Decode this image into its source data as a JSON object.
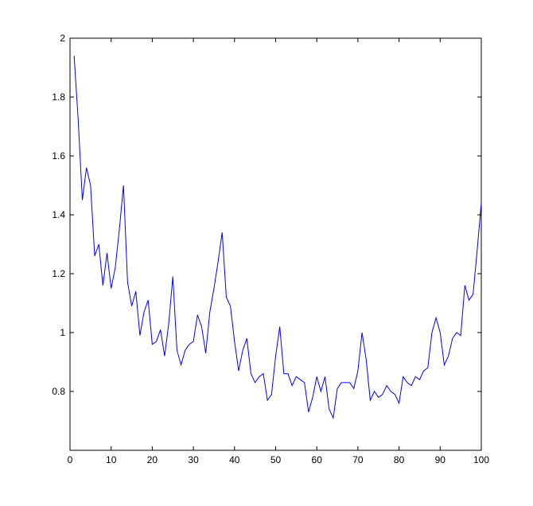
{
  "chart_data": {
    "type": "line",
    "x": [
      1,
      2,
      3,
      4,
      5,
      6,
      7,
      8,
      9,
      10,
      11,
      12,
      13,
      14,
      15,
      16,
      17,
      18,
      19,
      20,
      21,
      22,
      23,
      24,
      25,
      26,
      27,
      28,
      29,
      30,
      31,
      32,
      33,
      34,
      35,
      36,
      37,
      38,
      39,
      40,
      41,
      42,
      43,
      44,
      45,
      46,
      47,
      48,
      49,
      50,
      51,
      52,
      53,
      54,
      55,
      56,
      57,
      58,
      59,
      60,
      61,
      62,
      63,
      64,
      65,
      66,
      67,
      68,
      69,
      70,
      71,
      72,
      73,
      74,
      75,
      76,
      77,
      78,
      79,
      80,
      81,
      82,
      83,
      84,
      85,
      86,
      87,
      88,
      89,
      90,
      91,
      92,
      93,
      94,
      95,
      96,
      97,
      98,
      99,
      100
    ],
    "series": [
      {
        "color": "#0000ff",
        "values": [
          1.94,
          1.72,
          1.45,
          1.56,
          1.5,
          1.26,
          1.3,
          1.16,
          1.27,
          1.15,
          1.22,
          1.35,
          1.5,
          1.17,
          1.09,
          1.14,
          0.99,
          1.07,
          1.11,
          0.96,
          0.97,
          1.01,
          0.92,
          1.03,
          1.19,
          0.94,
          0.89,
          0.94,
          0.96,
          0.97,
          1.06,
          1.02,
          0.93,
          1.07,
          1.15,
          1.24,
          1.34,
          1.12,
          1.09,
          0.97,
          0.87,
          0.94,
          0.98,
          0.86,
          0.83,
          0.85,
          0.86,
          0.77,
          0.79,
          0.92,
          1.02,
          0.86,
          0.86,
          0.82,
          0.85,
          0.84,
          0.83,
          0.73,
          0.78,
          0.85,
          0.8,
          0.85,
          0.74,
          0.71,
          0.81,
          0.83,
          0.83,
          0.83,
          0.81,
          0.87,
          1.0,
          0.91,
          0.77,
          0.8,
          0.78,
          0.79,
          0.82,
          0.8,
          0.79,
          0.76,
          0.85,
          0.83,
          0.82,
          0.85,
          0.84,
          0.87,
          0.88,
          1.0,
          1.05,
          1.0,
          0.89,
          0.92,
          0.98,
          1.0,
          0.99,
          1.16,
          1.11,
          1.13,
          1.28,
          1.44
        ]
      }
    ],
    "xlim": [
      0,
      100
    ],
    "xticks": [
      0,
      10,
      20,
      30,
      40,
      50,
      60,
      70,
      80,
      90,
      100
    ],
    "ylim": [
      0.6,
      2
    ],
    "yticks": [
      0.8,
      1,
      1.2,
      1.4,
      1.6,
      1.8,
      2
    ]
  }
}
